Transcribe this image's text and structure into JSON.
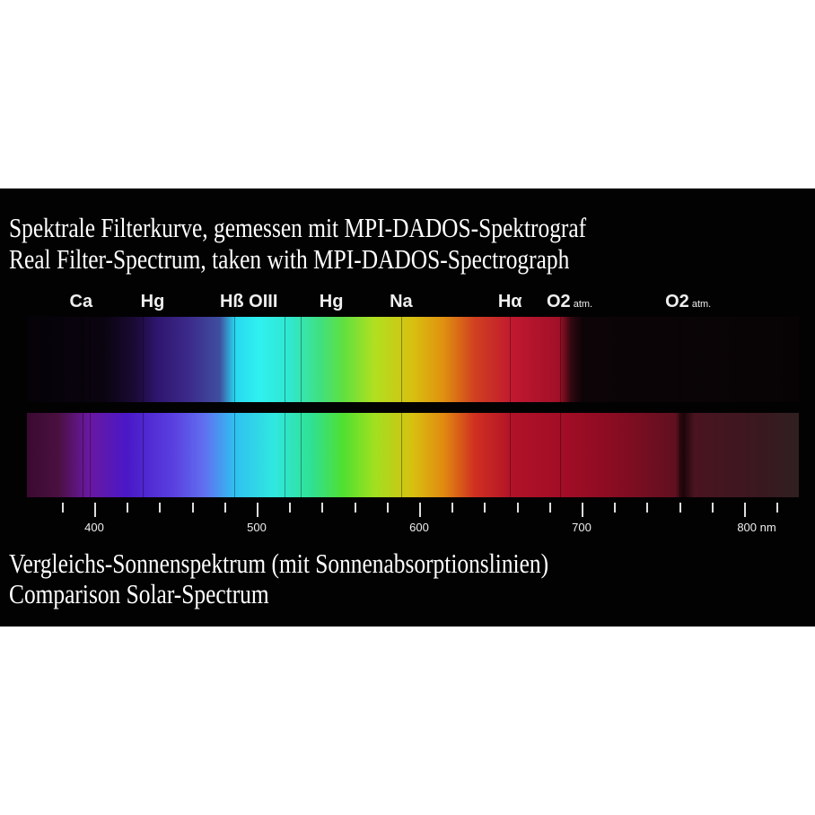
{
  "title_de": "Spektrale Filterkurve, gemessen mit MPI-DADOS-Spektrograf",
  "title_en": "Real Filter-Spectrum, taken with MPI-DADOS-Spectrograph",
  "element_labels": [
    {
      "main": "Ca",
      "sub": "",
      "nm": 392
    },
    {
      "main": "Hg",
      "sub": "",
      "nm": 436
    },
    {
      "main": "Hß OIII",
      "sub": "",
      "nm": 495
    },
    {
      "main": "Hg",
      "sub": "",
      "nm": 546
    },
    {
      "main": "Na",
      "sub": "",
      "nm": 589
    },
    {
      "main": "Hα",
      "sub": "",
      "nm": 656
    },
    {
      "main": "O2",
      "sub": " atm.",
      "nm": 687
    },
    {
      "main": "O2",
      "sub": " atm.",
      "nm": 760
    }
  ],
  "axis": {
    "unit": "nm",
    "min_nm": 380,
    "max_nm": 820,
    "minor_step": 20,
    "major": [
      {
        "value": 400,
        "label": "400"
      },
      {
        "value": 500,
        "label": "500"
      },
      {
        "value": 600,
        "label": "600"
      },
      {
        "value": 700,
        "label": "700"
      },
      {
        "value": 800,
        "label": "800 nm"
      }
    ]
  },
  "absorption_lines_nm": [
    393,
    397,
    430,
    486,
    517,
    527,
    589,
    656,
    687,
    760
  ],
  "caption_de": "Vergleichs-Sonnenspektrum (mit Sonnenabsorptionslinien)",
  "caption_en": "Comparison Solar-Spectrum"
}
